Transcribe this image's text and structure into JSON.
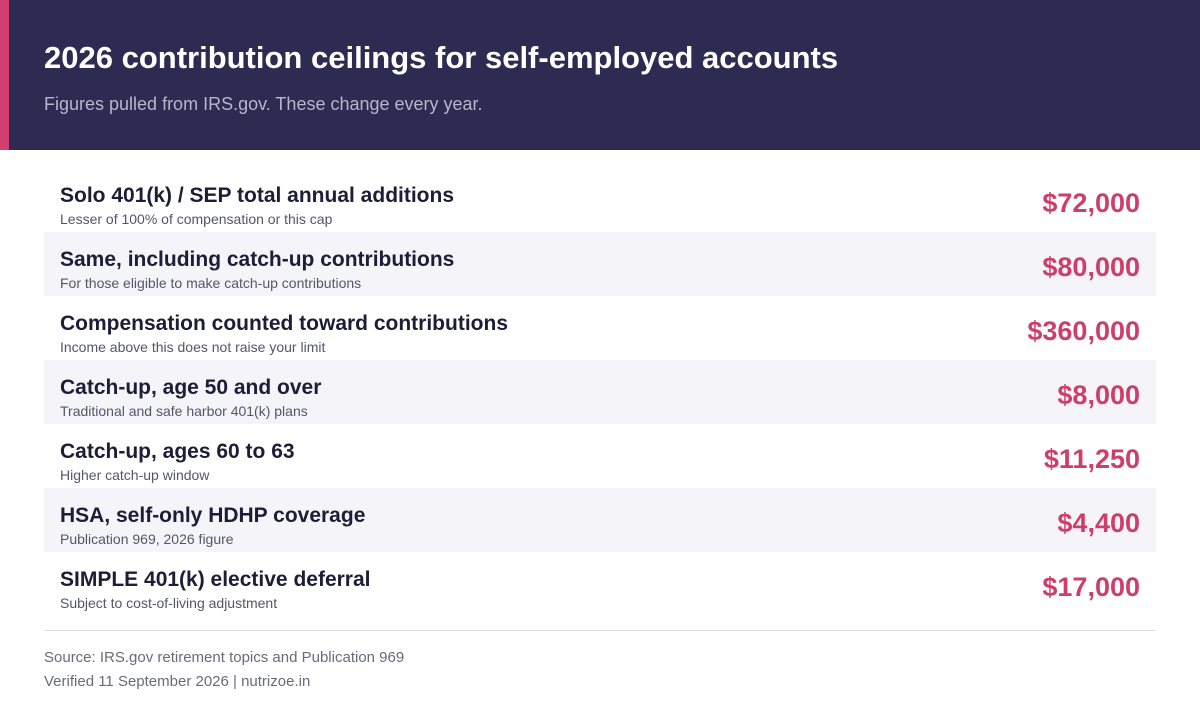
{
  "header": {
    "title": "2026 contribution ceilings for self-employed accounts",
    "subtitle": "Figures pulled from IRS.gov. These change every year."
  },
  "rows": [
    {
      "label": "Solo 401(k) / SEP total annual additions",
      "note": "Lesser of 100% of compensation or this cap",
      "value": "$72,000"
    },
    {
      "label": "Same, including catch-up contributions",
      "note": "For those eligible to make catch-up contributions",
      "value": "$80,000"
    },
    {
      "label": "Compensation counted toward contributions",
      "note": "Income above this does not raise your limit",
      "value": "$360,000"
    },
    {
      "label": "Catch-up, age 50 and over",
      "note": "Traditional and safe harbor 401(k) plans",
      "value": "$8,000"
    },
    {
      "label": "Catch-up, ages 60 to 63",
      "note": "Higher catch-up window",
      "value": "$11,250"
    },
    {
      "label": "HSA, self-only HDHP coverage",
      "note": "Publication 969, 2026 figure",
      "value": "$4,400"
    },
    {
      "label": "SIMPLE 401(k) elective deferral",
      "note": "Subject to cost-of-living adjustment",
      "value": "$17,000"
    }
  ],
  "footer": {
    "source": "Source: IRS.gov retirement topics and Publication 969",
    "verified": "Verified 11 September 2026  |  nutrizoe.in"
  },
  "colors": {
    "header_bg": "#2d2b51",
    "accent": "#d23f6e",
    "value": "#cd3f6a",
    "row_shade": "#f4f4f9"
  }
}
